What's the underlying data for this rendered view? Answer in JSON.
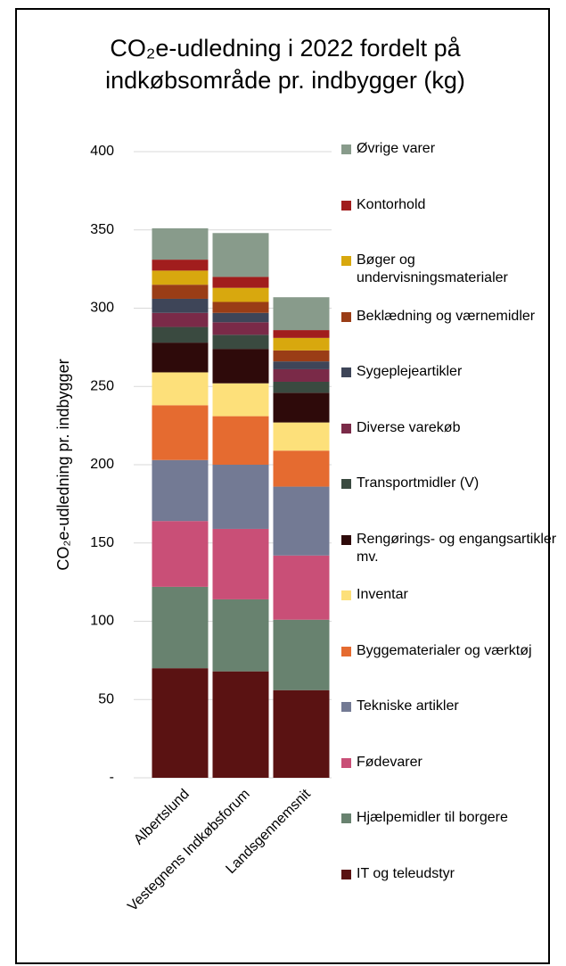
{
  "chart_data": {
    "type": "stacked-bar",
    "title": "CO₂e-udledning i 2022 fordelt på indkøbsområde pr. indbygger (kg)",
    "ylabel": "CO₂e-udledning pr. indbygger",
    "categories": [
      "Albertslund",
      "Vestegnens Indkøbsforum",
      "Landsgennemsnit"
    ],
    "ylim": [
      0,
      400
    ],
    "yticks": [
      {
        "value": 0,
        "label": "-"
      },
      50,
      100,
      150,
      200,
      250,
      300,
      350,
      400
    ],
    "grid": true,
    "series": [
      {
        "name": "IT og teleudstyr",
        "color": "#5a1212",
        "values": [
          70,
          68,
          56
        ]
      },
      {
        "name": "Hjælpemidler til borgere",
        "color": "#68826f",
        "values": [
          52,
          46,
          45
        ]
      },
      {
        "name": "Fødevarer",
        "color": "#c94f77",
        "values": [
          42,
          45,
          41
        ]
      },
      {
        "name": "Tekniske artikler",
        "color": "#737a94",
        "values": [
          39,
          41,
          44
        ]
      },
      {
        "name": "Byggematerialer og værktøj",
        "color": "#e56b30",
        "values": [
          35,
          31,
          23
        ]
      },
      {
        "name": "Inventar",
        "color": "#fde07a",
        "values": [
          21,
          21,
          18
        ]
      },
      {
        "name": "Rengørings- og engangsartikler mv.",
        "color": "#2e0a0a",
        "values": [
          19,
          22,
          19
        ]
      },
      {
        "name": "Transportmidler (V)",
        "color": "#3a4a40",
        "values": [
          10,
          9,
          7
        ]
      },
      {
        "name": "Diverse varekøb",
        "color": "#7a2a48",
        "values": [
          9,
          8,
          8
        ]
      },
      {
        "name": "Sygeplejeartikler",
        "color": "#3e4558",
        "values": [
          9,
          6,
          5
        ]
      },
      {
        "name": "Beklædning og værnemidler",
        "color": "#9a3d16",
        "values": [
          9,
          7,
          7
        ]
      },
      {
        "name": "Bøger og undervisningsmaterialer",
        "color": "#d8a80e",
        "values": [
          9,
          9,
          8
        ]
      },
      {
        "name": "Kontorhold",
        "color": "#a11d1d",
        "values": [
          7,
          7,
          5
        ]
      },
      {
        "name": "Øvrige varer",
        "color": "#889b8b",
        "values": [
          20,
          28,
          21
        ]
      }
    ]
  }
}
